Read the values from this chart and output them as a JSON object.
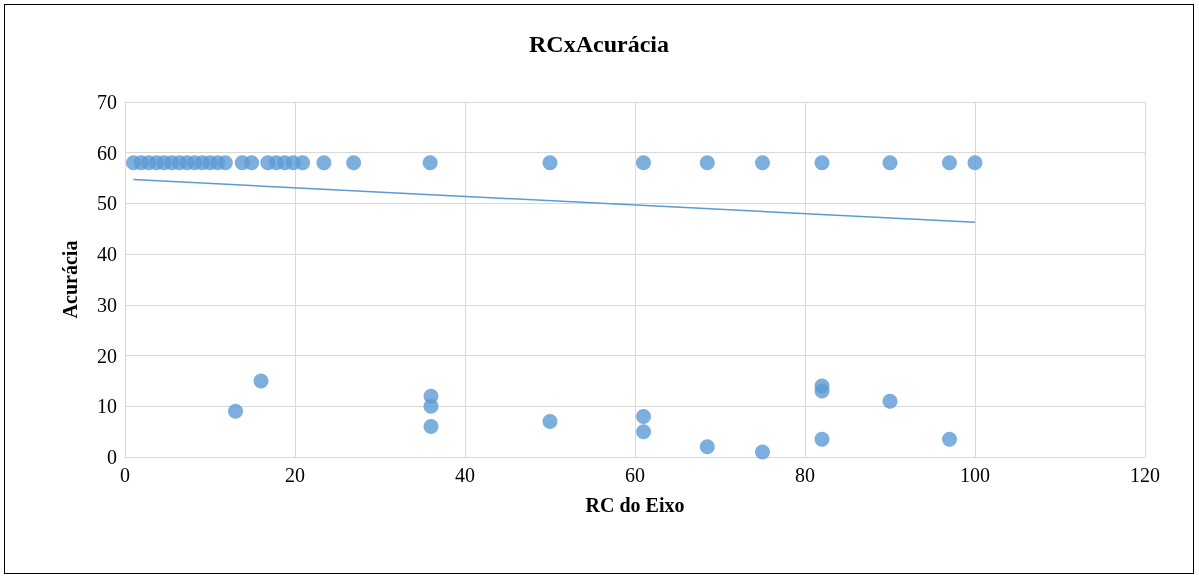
{
  "chart_data": {
    "type": "scatter",
    "title": "RCxAcurácia",
    "xlabel": "RC do Eixo",
    "ylabel": "Acurácia",
    "xlim": [
      0,
      120
    ],
    "xticks": [
      0,
      20,
      40,
      60,
      80,
      100,
      120
    ],
    "ylim": [
      0,
      70
    ],
    "yticks": [
      0,
      10,
      20,
      30,
      40,
      50,
      60,
      70
    ],
    "grid": true,
    "marker": "circle",
    "series": [
      {
        "color": "#5b9bd5",
        "x": [
          1,
          1.9,
          2.8,
          3.7,
          4.6,
          5.5,
          6.4,
          7.3,
          8.2,
          9.1,
          10,
          10.9,
          11.8,
          13.8,
          14.9,
          16.8,
          17.8,
          18.8,
          19.8,
          20.9,
          23.4,
          26.9,
          35.9,
          50,
          61,
          68.5,
          75,
          82,
          90,
          97,
          100,
          13,
          16,
          36,
          36,
          36,
          50,
          61,
          61,
          68.5,
          75,
          82,
          82,
          82,
          90,
          97
        ],
        "values": [
          58,
          58,
          58,
          58,
          58,
          58,
          58,
          58,
          58,
          58,
          58,
          58,
          58,
          58,
          58,
          58,
          58,
          58,
          58,
          58,
          58,
          58,
          58,
          58,
          58,
          58,
          58,
          58,
          58,
          58,
          58,
          9,
          15,
          12,
          10,
          6,
          7,
          8,
          5,
          2,
          1,
          14,
          13,
          3.5,
          11,
          3.5
        ]
      },
      {
        "type": "line",
        "color": "#5b9bd5",
        "x": [
          1,
          100
        ],
        "values": [
          54.7,
          46.3
        ],
        "marker": "none"
      }
    ]
  }
}
